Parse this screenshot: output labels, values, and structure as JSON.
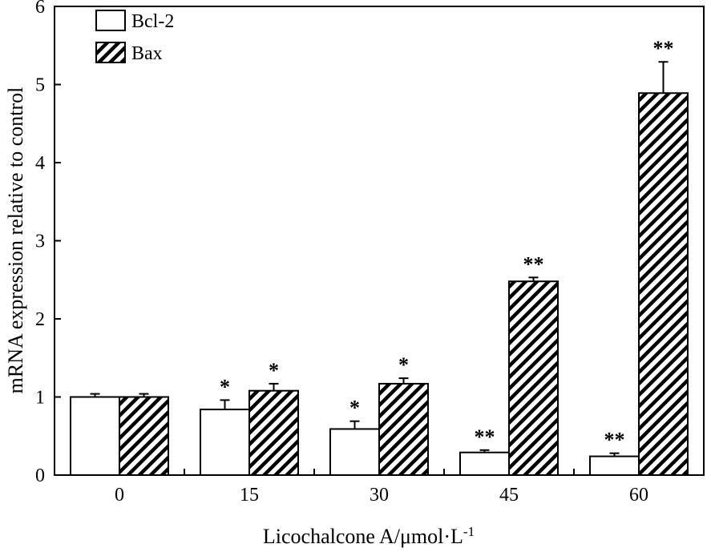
{
  "chart_data": {
    "type": "bar",
    "xlabel": "Licochalcone A/μmol·L",
    "xlabel_superscript": "-1",
    "ylabel": "mRNA expression relative to control",
    "categories": [
      "0",
      "15",
      "30",
      "45",
      "60"
    ],
    "ylim": [
      0,
      6
    ],
    "yticks": [
      "0",
      "1",
      "2",
      "3",
      "4",
      "5",
      "6"
    ],
    "grid": false,
    "legend_position": "top-left",
    "series": [
      {
        "name": "Bcl-2",
        "fill": "white",
        "values": [
          1.0,
          0.84,
          0.59,
          0.29,
          0.24
        ],
        "errors": [
          0.04,
          0.12,
          0.1,
          0.03,
          0.04
        ],
        "significance": [
          "",
          "*",
          "*",
          "**",
          "**"
        ]
      },
      {
        "name": "Bax",
        "fill": "hatched",
        "values": [
          1.0,
          1.08,
          1.17,
          2.48,
          4.89
        ],
        "errors": [
          0.04,
          0.09,
          0.07,
          0.05,
          0.4
        ],
        "significance": [
          "",
          "*",
          "*",
          "**",
          "**"
        ]
      }
    ],
    "colors": {
      "stroke": "#000000",
      "background": "#ffffff"
    }
  }
}
